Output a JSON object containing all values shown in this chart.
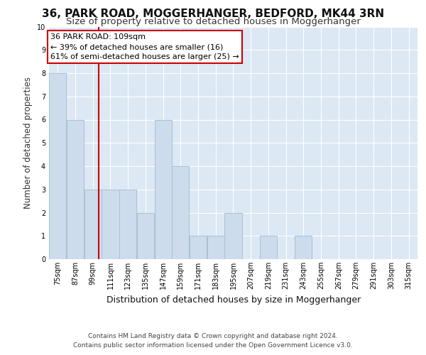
{
  "title": "36, PARK ROAD, MOGGERHANGER, BEDFORD, MK44 3RN",
  "subtitle": "Size of property relative to detached houses in Moggerhanger",
  "xlabel": "Distribution of detached houses by size in Moggerhanger",
  "ylabel": "Number of detached properties",
  "bin_labels": [
    "75sqm",
    "87sqm",
    "99sqm",
    "111sqm",
    "123sqm",
    "135sqm",
    "147sqm",
    "159sqm",
    "171sqm",
    "183sqm",
    "195sqm",
    "207sqm",
    "219sqm",
    "231sqm",
    "243sqm",
    "255sqm",
    "267sqm",
    "279sqm",
    "291sqm",
    "303sqm",
    "315sqm"
  ],
  "bin_edges": [
    75,
    87,
    99,
    111,
    123,
    135,
    147,
    159,
    171,
    183,
    195,
    207,
    219,
    231,
    243,
    255,
    267,
    279,
    291,
    303,
    315
  ],
  "bar_heights": [
    8,
    6,
    3,
    3,
    3,
    2,
    6,
    4,
    1,
    1,
    2,
    0,
    1,
    0,
    1,
    0,
    0,
    0,
    0,
    0,
    0
  ],
  "bar_color": "#ccdcec",
  "bar_edge_color": "#a8c0d4",
  "subject_value": 109,
  "vline_color": "#cc0000",
  "annotation_line1": "36 PARK ROAD: 109sqm",
  "annotation_line2": "← 39% of detached houses are smaller (16)",
  "annotation_line3": "61% of semi-detached houses are larger (25) →",
  "annotation_box_color": "#cc0000",
  "ylim": [
    0,
    10
  ],
  "yticks": [
    0,
    1,
    2,
    3,
    4,
    5,
    6,
    7,
    8,
    9,
    10
  ],
  "footer_line1": "Contains HM Land Registry data © Crown copyright and database right 2024.",
  "footer_line2": "Contains public sector information licensed under the Open Government Licence v3.0.",
  "background_color": "#dce8f4",
  "grid_color": "#ffffff",
  "title_fontsize": 11,
  "subtitle_fontsize": 9.5,
  "xlabel_fontsize": 9,
  "ylabel_fontsize": 8.5,
  "tick_fontsize": 7,
  "annotation_fontsize": 8,
  "footer_fontsize": 6.5
}
